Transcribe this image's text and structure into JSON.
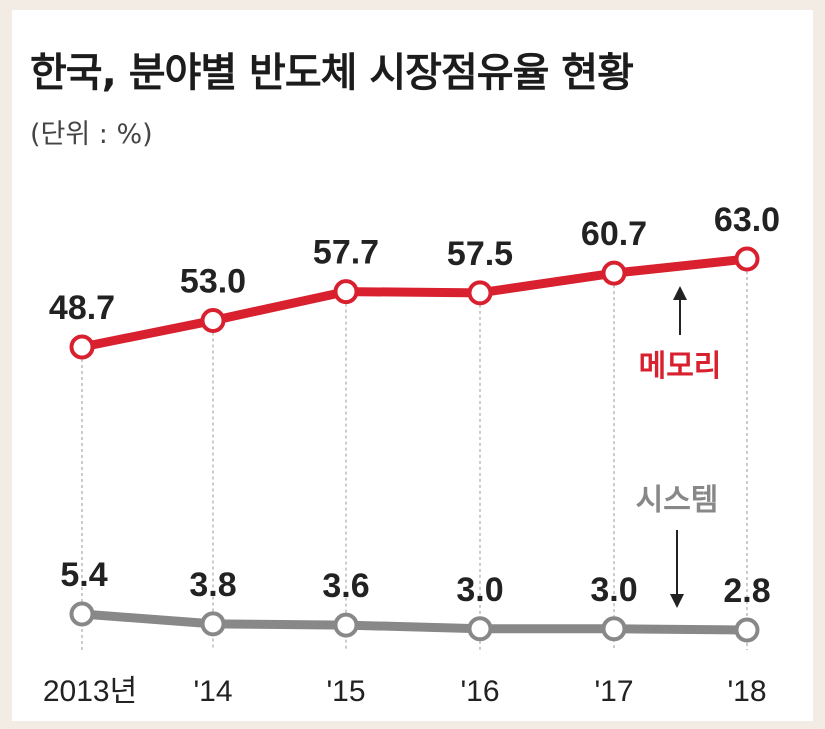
{
  "title": "한국, 분야별 반도체 시장점유율 현황",
  "unit": "(단위 : %)",
  "colors": {
    "memory": "#d8202f",
    "system": "#888888",
    "background": "#f3ece4"
  },
  "chart_data": {
    "type": "line",
    "title": "한국, 분야별 반도체 시장점유율 현황",
    "unit": "(단위 : %)",
    "categories": [
      "2013년",
      "'14",
      "'15",
      "'16",
      "'17",
      "'18"
    ],
    "series": [
      {
        "name": "메모리",
        "values": [
          48.7,
          53.0,
          57.7,
          57.5,
          60.7,
          63.0
        ],
        "labels": [
          "48.7",
          "53.0",
          "57.7",
          "57.5",
          "60.7",
          "63.0"
        ]
      },
      {
        "name": "시스템",
        "values": [
          5.4,
          3.8,
          3.6,
          3.0,
          3.0,
          2.8
        ],
        "labels": [
          "5.4",
          "3.8",
          "3.6",
          "3.0",
          "3.0",
          "2.8"
        ]
      }
    ],
    "grid": false,
    "legend": "inline"
  }
}
